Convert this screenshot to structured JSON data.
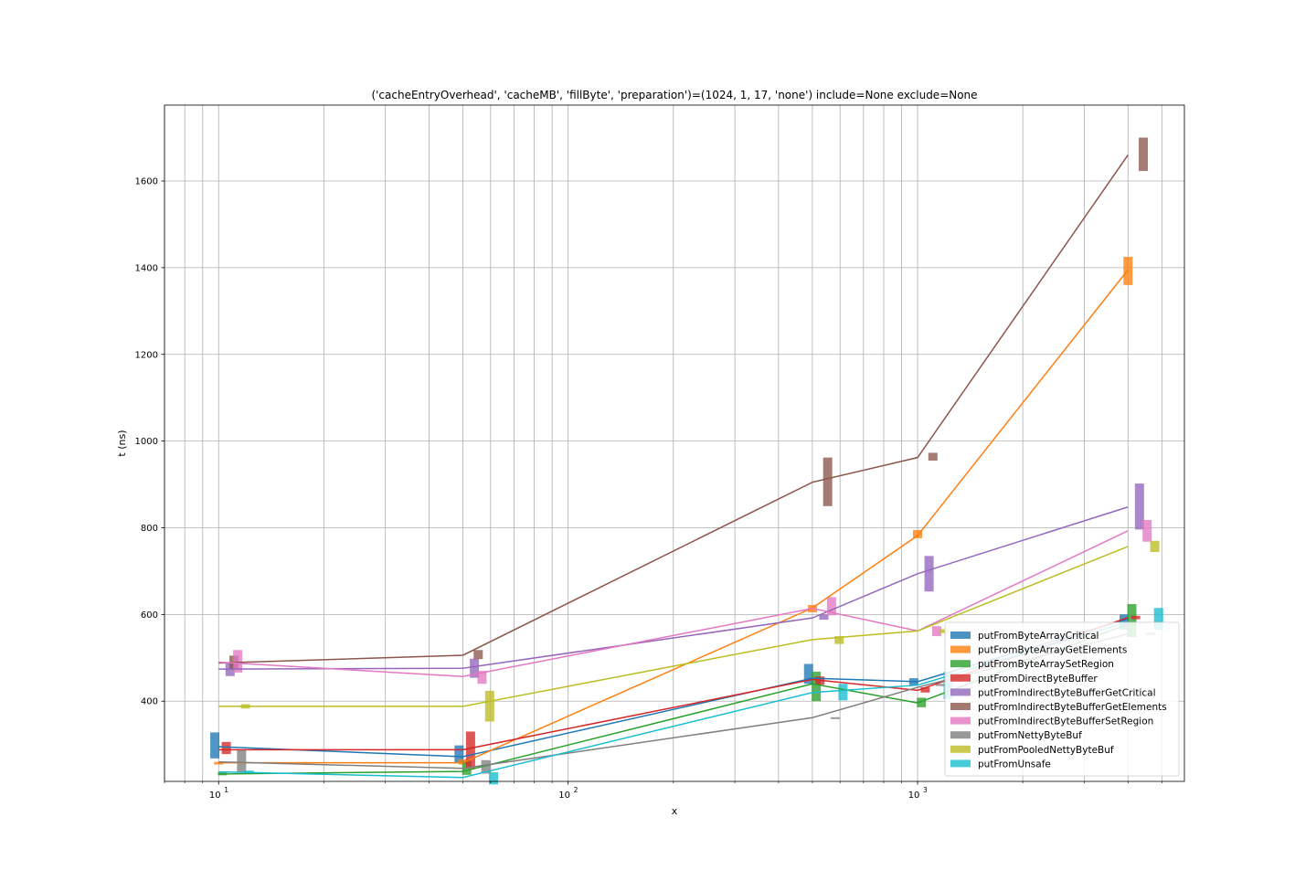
{
  "chart_data": {
    "type": "line",
    "title": "('cacheEntryOverhead', 'cacheMB', 'fillByte', 'preparation')=(1024, 1, 17, 'none') include=None exclude=None",
    "xlabel": "x",
    "ylabel": "t (ns)",
    "x_scale": "log",
    "xlim": [
      7,
      5800
    ],
    "ylim": [
      215,
      1775
    ],
    "x_ticks": [
      {
        "value": 10,
        "base": "10",
        "exp": "1"
      },
      {
        "value": 100,
        "base": "10",
        "exp": "2"
      },
      {
        "value": 1000,
        "base": "10",
        "exp": "3"
      }
    ],
    "y_ticks": [
      400,
      600,
      800,
      1000,
      1200,
      1400,
      1600
    ],
    "grid": true,
    "legend_position": "lower-right",
    "x": [
      10,
      50,
      500,
      1000,
      4000
    ],
    "series": [
      {
        "name": "putFromByteArrayCritical",
        "color": "#1f77b4",
        "values": [
          295,
          272,
          453,
          445,
          590
        ],
        "bars": [
          {
            "x": 10,
            "low": 268,
            "high": 328
          },
          {
            "x": 50,
            "low": 258,
            "high": 298
          },
          {
            "x": 500,
            "low": 440,
            "high": 486
          },
          {
            "x": 1000,
            "low": 437,
            "high": 453
          },
          {
            "x": 4000,
            "low": 565,
            "high": 600
          }
        ]
      },
      {
        "name": "putFromByteArrayGetElements",
        "color": "#ff7f0e",
        "values": [
          258,
          258,
          615,
          782,
          1395
        ],
        "bars": [
          {
            "x": 10,
            "low": 254,
            "high": 260
          },
          {
            "x": 50,
            "low": 254,
            "high": 266
          },
          {
            "x": 500,
            "low": 605,
            "high": 622
          },
          {
            "x": 1000,
            "low": 776,
            "high": 795
          },
          {
            "x": 4000,
            "low": 1360,
            "high": 1425
          }
        ]
      },
      {
        "name": "putFromByteArraySetRegion",
        "color": "#2ca02c",
        "values": [
          232,
          238,
          440,
          396,
          578
        ],
        "bars": [
          {
            "x": 10,
            "low": 229,
            "high": 236
          },
          {
            "x": 50,
            "low": 230,
            "high": 262
          },
          {
            "x": 500,
            "low": 400,
            "high": 468
          },
          {
            "x": 1000,
            "low": 386,
            "high": 408
          },
          {
            "x": 4000,
            "low": 548,
            "high": 624
          }
        ]
      },
      {
        "name": "putFromDirectByteBuffer",
        "color": "#d62728",
        "values": [
          288,
          288,
          450,
          425,
          593
        ],
        "bars": [
          {
            "x": 10,
            "low": 278,
            "high": 306
          },
          {
            "x": 50,
            "low": 245,
            "high": 330
          },
          {
            "x": 500,
            "low": 438,
            "high": 457
          },
          {
            "x": 1000,
            "low": 420,
            "high": 432
          },
          {
            "x": 4000,
            "low": 589,
            "high": 597
          }
        ]
      },
      {
        "name": "putFromIndirectByteBufferGetCritical",
        "color": "#9467bd",
        "values": [
          474,
          476,
          592,
          694,
          848
        ],
        "bars": [
          {
            "x": 10,
            "low": 458,
            "high": 488
          },
          {
            "x": 50,
            "low": 454,
            "high": 498
          },
          {
            "x": 500,
            "low": 588,
            "high": 600
          },
          {
            "x": 1000,
            "low": 653,
            "high": 735
          },
          {
            "x": 4000,
            "low": 796,
            "high": 902
          }
        ]
      },
      {
        "name": "putFromIndirectByteBufferGetElements",
        "color": "#8c564b",
        "values": [
          488,
          506,
          905,
          962,
          1660
        ],
        "bars": [
          {
            "x": 10,
            "low": 474,
            "high": 505
          },
          {
            "x": 50,
            "low": 497,
            "high": 518
          },
          {
            "x": 500,
            "low": 850,
            "high": 962
          },
          {
            "x": 1000,
            "low": 955,
            "high": 973
          },
          {
            "x": 4000,
            "low": 1623,
            "high": 1700
          }
        ]
      },
      {
        "name": "putFromIndirectByteBufferSetRegion",
        "color": "#e377c2",
        "values": [
          490,
          457,
          614,
          562,
          793
        ],
        "bars": [
          {
            "x": 10,
            "low": 466,
            "high": 518
          },
          {
            "x": 50,
            "low": 440,
            "high": 470
          },
          {
            "x": 500,
            "low": 598,
            "high": 640
          },
          {
            "x": 1000,
            "low": 550,
            "high": 573
          },
          {
            "x": 4000,
            "low": 768,
            "high": 818
          }
        ]
      },
      {
        "name": "putFromNettyByteBuf",
        "color": "#7f7f7f",
        "values": [
          260,
          245,
          362,
          432,
          555
        ],
        "bars": [
          {
            "x": 10,
            "low": 235,
            "high": 288
          },
          {
            "x": 50,
            "low": 233,
            "high": 264
          },
          {
            "x": 500,
            "low": 360,
            "high": 363
          },
          {
            "x": 1000,
            "low": 435,
            "high": 440
          },
          {
            "x": 4000,
            "low": 553,
            "high": 558
          }
        ]
      },
      {
        "name": "putFromPooledNettyByteBuf",
        "color": "#bcbd22",
        "values": [
          388,
          388,
          542,
          562,
          757
        ],
        "bars": [
          {
            "x": 10,
            "low": 383,
            "high": 393
          },
          {
            "x": 50,
            "low": 353,
            "high": 424
          },
          {
            "x": 500,
            "low": 532,
            "high": 550
          },
          {
            "x": 1000,
            "low": 557,
            "high": 566
          },
          {
            "x": 4000,
            "low": 744,
            "high": 770
          }
        ]
      },
      {
        "name": "putFromUnsafe",
        "color": "#17becf",
        "values": [
          237,
          224,
          420,
          437,
          583
        ],
        "bars": [
          {
            "x": 10,
            "low": 233,
            "high": 240
          },
          {
            "x": 50,
            "low": 208,
            "high": 236
          },
          {
            "x": 500,
            "low": 402,
            "high": 440
          },
          {
            "x": 1000,
            "low": 405,
            "high": 468
          },
          {
            "x": 4000,
            "low": 565,
            "high": 615
          }
        ]
      }
    ]
  }
}
